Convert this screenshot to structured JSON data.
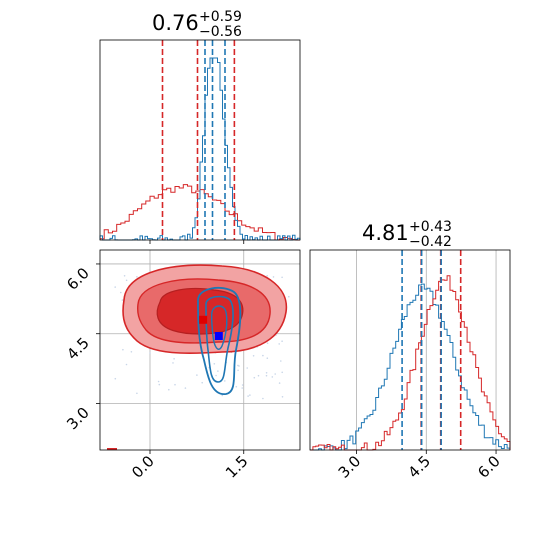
{
  "chart_data": {
    "type": "corner",
    "colors": {
      "red": "#d62728",
      "blue": "#1f77b4",
      "red_fill_light": "#f2a3a3",
      "red_fill_dark": "#d62728"
    },
    "parameters": [
      {
        "title_value": "0.76",
        "title_plus": "+0.59",
        "title_minus": "−0.56",
        "range": [
          -0.8,
          2.4
        ],
        "red_quantiles": [
          0.2,
          0.76,
          1.35
        ],
        "blue_quantiles": [
          0.88,
          1.0,
          1.2
        ]
      },
      {
        "title_value": "4.81",
        "title_plus": "+0.43",
        "title_minus": "−0.42",
        "range": [
          2.0,
          6.3
        ],
        "red_quantiles": [
          4.39,
          4.81,
          5.24
        ],
        "blue_quantiles": [
          3.98,
          4.4,
          4.82
        ]
      }
    ],
    "scatter_panel": {
      "xlim": [
        -0.8,
        2.4
      ],
      "ylim": [
        2.0,
        6.3
      ],
      "red_point": [
        0.85,
        4.8
      ],
      "blue_point": [
        1.1,
        4.45
      ]
    },
    "x_ticks_param1": [
      {
        "value": 0.0,
        "label": "0.0"
      },
      {
        "value": 1.5,
        "label": "1.5"
      }
    ],
    "y_ticks_param2": [
      {
        "value": 3.0,
        "label": "3.0"
      },
      {
        "value": 4.5,
        "label": "4.5"
      },
      {
        "value": 6.0,
        "label": "6.0"
      }
    ],
    "x_ticks_param2": [
      {
        "value": 3.0,
        "label": "3.0"
      },
      {
        "value": 4.5,
        "label": "4.5"
      },
      {
        "value": 6.0,
        "label": "6.0"
      }
    ],
    "grid": true
  }
}
